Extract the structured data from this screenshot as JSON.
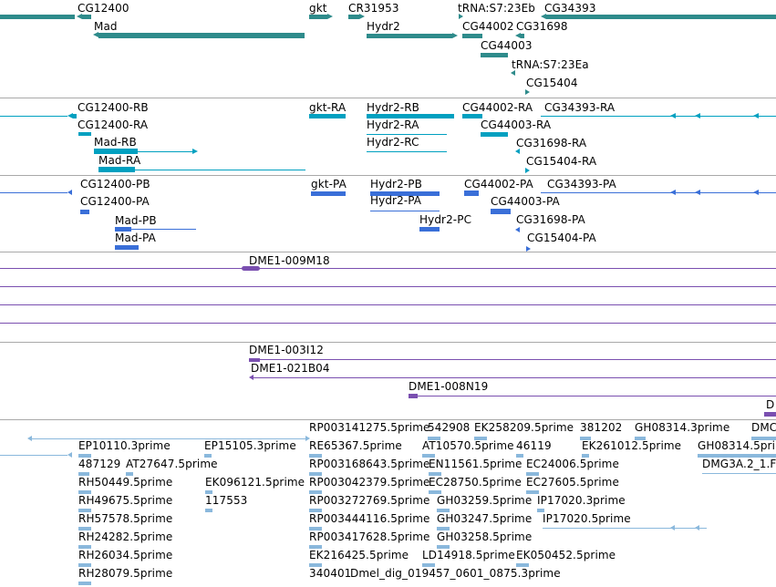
{
  "colors": {
    "gene": "#2e8b8b",
    "transcript": "#00a0c0",
    "protein": "#3a6fd8",
    "clone": "#7a4fb0",
    "est": "#8ab8dc",
    "separator": "#a9a9a9"
  },
  "tracks": {
    "genes": {
      "labels": [
        "CG12400",
        "Mad",
        "gkt",
        "CR31953",
        "Hydr2",
        "tRNA:S7:23Eb",
        "CG44002",
        "CG31698",
        "CG44003",
        "tRNA:S7:23Ea",
        "CG15404",
        "CG34393"
      ]
    },
    "transcripts": {
      "labels": [
        "CG12400-RB",
        "CG12400-RA",
        "Mad-RB",
        "Mad-RA",
        "gkt-RA",
        "Hydr2-RB",
        "Hydr2-RA",
        "Hydr2-RC",
        "CG44002-RA",
        "CG44003-RA",
        "CG34393-RA",
        "CG31698-RA",
        "CG15404-RA"
      ]
    },
    "proteins": {
      "labels": [
        "CG12400-PB",
        "CG12400-PA",
        "Mad-PB",
        "Mad-PA",
        "gkt-PA",
        "Hydr2-PB",
        "Hydr2-PA",
        "Hydr2-PC",
        "CG44002-PA",
        "CG44003-PA",
        "CG34393-PA",
        "CG31698-PA",
        "CG15404-PA"
      ]
    },
    "clones_1": {
      "labels": [
        "DME1-009M18"
      ]
    },
    "clones_2": {
      "labels": [
        "DME1-003I12",
        "DME1-021B04",
        "DME1-008N19",
        "D"
      ]
    },
    "ests": {
      "labels": [
        "RP003141275.5prime",
        "542908",
        "EK258209.5prime",
        "381202",
        "GH08314.3prime",
        "DMC",
        "EP10110.3prime",
        "EP15105.3prime",
        "RE65367.5prime",
        "AT10570.5prime",
        "46119",
        "EK261012.5prime",
        "GH08314.5prim",
        "487129",
        "AT27647.5prime",
        "RP003168643.5prime",
        "EN11561.5prime",
        "EC24006.5prime",
        "DMG3A.2_1.F",
        "RH50449.5prime",
        "EK096121.5prime",
        "RP003042379.5prime",
        "EC28750.5prime",
        "EC27605.5prime",
        "RH49675.5prime",
        "117553",
        "RP003272769.5prime",
        "GH03259.5prime",
        "IP17020.3prime",
        "RH57578.5prime",
        "RP003444116.5prime",
        "GH03247.5prime",
        "IP17020.5prime",
        "RH24282.5prime",
        "RP003417628.5prime",
        "GH03258.5prime",
        "RH26034.5prime",
        "EK216425.5prime",
        "LD14918.5prime",
        "EK050452.5prime",
        "RH28079.5prime",
        "340401",
        "Dmel_dig_019457_0601_0875.3prime"
      ]
    }
  }
}
